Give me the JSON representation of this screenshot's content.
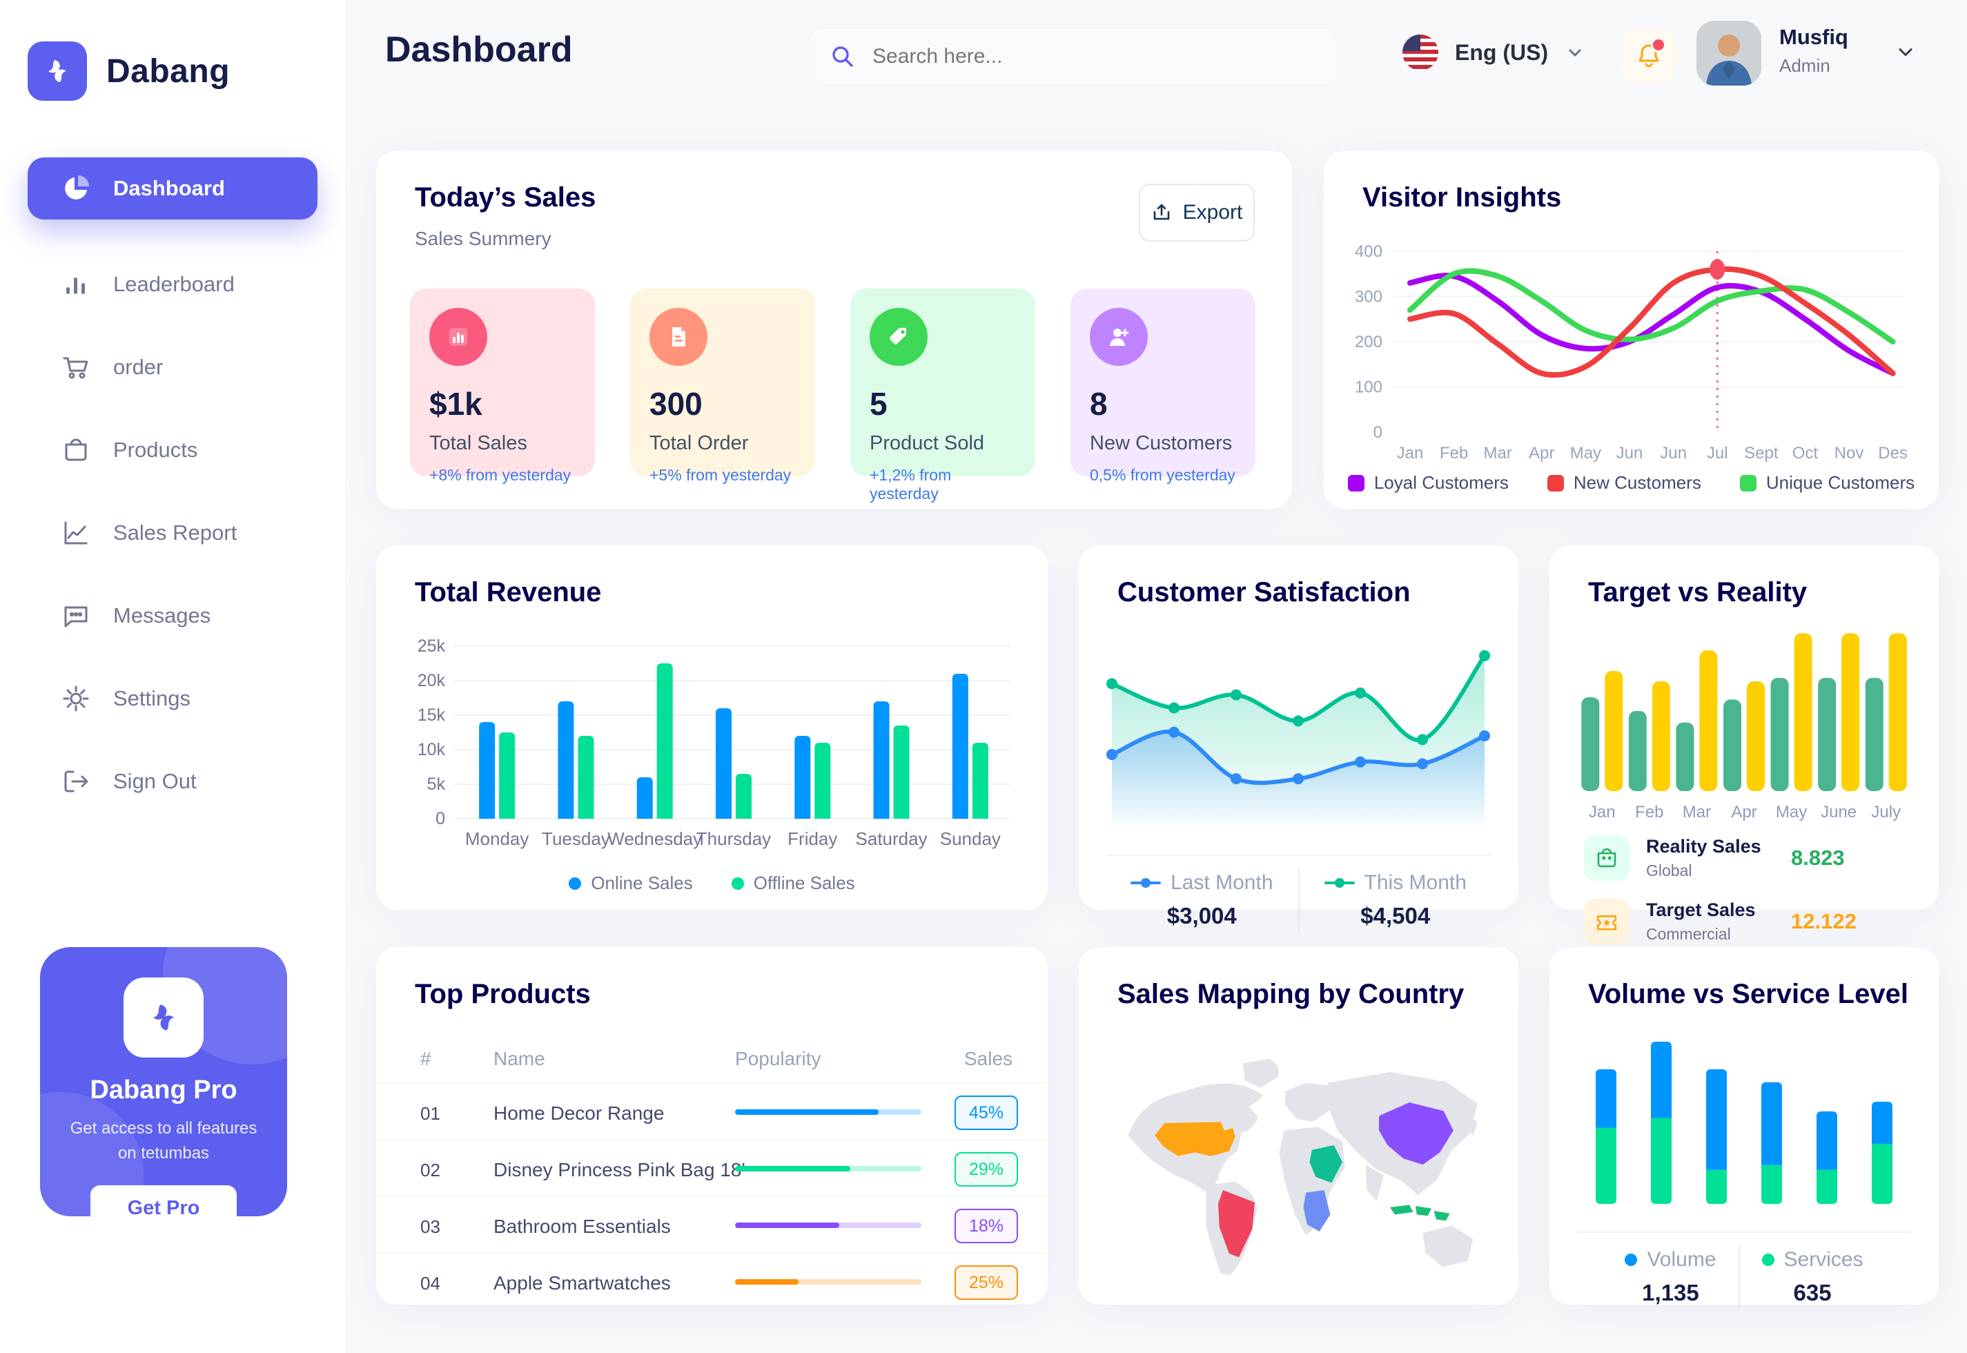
{
  "app": {
    "name": "Dabang"
  },
  "header": {
    "title": "Dashboard",
    "search": {
      "placeholder": "Search here...",
      "icon": "search-icon"
    },
    "language": {
      "label": "Eng (US)",
      "flag": "us-flag-icon"
    },
    "notifications": {
      "icon": "bell-icon",
      "unread_dot_color": "#F64E60"
    },
    "user": {
      "name": "Musfiq",
      "role": "Admin"
    }
  },
  "sidebar": {
    "items": [
      {
        "label": "Dashboard",
        "icon": "pie-chart-icon",
        "active": true
      },
      {
        "label": "Leaderboard",
        "icon": "bar-chart-icon",
        "active": false
      },
      {
        "label": "order",
        "icon": "cart-icon",
        "active": false
      },
      {
        "label": "Products",
        "icon": "bag-icon",
        "active": false
      },
      {
        "label": "Sales Report",
        "icon": "line-chart-icon",
        "active": false
      },
      {
        "label": "Messages",
        "icon": "message-icon",
        "active": false
      },
      {
        "label": "Settings",
        "icon": "gear-icon",
        "active": false
      },
      {
        "label": "Sign Out",
        "icon": "sign-out-icon",
        "active": false
      }
    ],
    "promo": {
      "title": "Dabang Pro",
      "description": "Get access to all features on tetumbas",
      "button": "Get Pro",
      "bg_color": "#5D5FEF"
    }
  },
  "today_sales": {
    "title": "Today’s Sales",
    "subtitle": "Sales Summery",
    "export_label": "Export",
    "delta_color": "#4079ED",
    "cards": [
      {
        "value": "$1k",
        "label": "Total Sales",
        "delta": "+8% from yesterday",
        "bg": "#FFE2E5",
        "icon_bg": "#FA5A7D",
        "icon": "bar-chart-icon"
      },
      {
        "value": "300",
        "label": "Total Order",
        "delta": "+5% from yesterday",
        "bg": "#FFF4DE",
        "icon_bg": "#FF947A",
        "icon": "order-receipt-icon"
      },
      {
        "value": "5",
        "label": "Product Sold",
        "delta": "+1,2% from yesterday",
        "bg": "#DCFCE7",
        "icon_bg": "#3CD856",
        "icon": "tag-icon"
      },
      {
        "value": "8",
        "label": "New Customers",
        "delta": "0,5% from yesterday",
        "bg": "#F3E8FF",
        "icon_bg": "#BF83FF",
        "icon": "user-plus-icon"
      }
    ]
  },
  "top_products": {
    "title": "Top Products",
    "columns": [
      "#",
      "Name",
      "Popularity",
      "Sales"
    ],
    "rows": [
      {
        "index": "01",
        "name": "Home Decor Range",
        "popularity": 77,
        "sales": "45%",
        "color": "#0095FF",
        "tint": "#F0F9FF"
      },
      {
        "index": "02",
        "name": "Disney Princess Pink Bag 18'",
        "popularity": 62,
        "sales": "29%",
        "color": "#00E096",
        "tint": "#F0FDF6"
      },
      {
        "index": "03",
        "name": "Bathroom Essentials",
        "popularity": 56,
        "sales": "18%",
        "color": "#884DFF",
        "tint": "#FBF5FF"
      },
      {
        "index": "04",
        "name": "Apple Smartwatches",
        "popularity": 34,
        "sales": "25%",
        "color": "#FF8F0D",
        "tint": "#FFF6EA"
      }
    ]
  },
  "chart_data": [
    {
      "id": "visitor-insights",
      "type": "line",
      "title": "Visitor Insights",
      "categories": [
        "Jan",
        "Feb",
        "Mar",
        "Apr",
        "May",
        "Jun",
        "Jun",
        "Jul",
        "Sept",
        "Oct",
        "Nov",
        "Des"
      ],
      "ylim": [
        0,
        400
      ],
      "yticks": [
        0,
        100,
        200,
        300,
        400
      ],
      "grid": true,
      "legend_position": "bottom",
      "series": [
        {
          "name": "Loyal Customers",
          "color": "#A700F6",
          "values": [
            330,
            345,
            290,
            215,
            185,
            200,
            260,
            320,
            310,
            250,
            180,
            130
          ]
        },
        {
          "name": "New Customers",
          "color": "#EF3E3E",
          "values": [
            250,
            262,
            195,
            130,
            145,
            230,
            330,
            360,
            345,
            285,
            215,
            130
          ]
        },
        {
          "name": "Unique Customers",
          "color": "#3CD856",
          "values": [
            270,
            350,
            345,
            290,
            225,
            205,
            230,
            290,
            312,
            315,
            265,
            200
          ]
        }
      ],
      "annotation": {
        "type": "vline",
        "category": "Jul",
        "index": 7,
        "color": "#F64E60",
        "marker_series": "New Customers",
        "marker_value": 360
      }
    },
    {
      "id": "total-revenue",
      "type": "bar",
      "title": "Total Revenue",
      "categories": [
        "Monday",
        "Tuesday",
        "Wednesday",
        "Thursday",
        "Friday",
        "Saturday",
        "Sunday"
      ],
      "ylabel": "",
      "unit": "k",
      "ylim": [
        0,
        25
      ],
      "yticks": [
        "0",
        "5k",
        "10k",
        "15k",
        "20k",
        "25k"
      ],
      "grid": true,
      "legend_position": "bottom",
      "series": [
        {
          "name": "Online Sales",
          "color": "#0095FF",
          "values": [
            14,
            17,
            6,
            16,
            12,
            17,
            21
          ]
        },
        {
          "name": "Offline Sales",
          "color": "#00E096",
          "values": [
            12.5,
            12,
            22.5,
            6.5,
            11,
            13.5,
            11
          ]
        }
      ]
    },
    {
      "id": "customer-satisfaction",
      "type": "area",
      "title": "Customer Satisfaction",
      "x_points": 7,
      "ylim": [
        0,
        100
      ],
      "legend_position": "bottom",
      "series": [
        {
          "name": "Last Month",
          "color": "#2E8AF7",
          "total": "$3,004",
          "values": [
            40,
            52,
            27,
            27,
            36,
            35,
            50
          ]
        },
        {
          "name": "This Month",
          "color": "#00C292",
          "total": "$4,504",
          "values": [
            78,
            65,
            72,
            58,
            73,
            48,
            93
          ]
        }
      ]
    },
    {
      "id": "target-vs-reality",
      "type": "bar",
      "title": "Target vs Reality",
      "categories": [
        "Jan",
        "Feb",
        "Mar",
        "Apr",
        "May",
        "June",
        "July"
      ],
      "ylim": [
        0,
        14
      ],
      "legend_position": "bottom-rows",
      "series": [
        {
          "name": "Reality Sales",
          "subtitle": "Global",
          "color": "#4AB58E",
          "icon_bg": "#E2FFF1",
          "value_label": "8.823",
          "value_color": "#27AE60",
          "values": [
            8.2,
            7,
            6,
            8,
            9.9,
            9.9,
            9.9
          ]
        },
        {
          "name": "Target Sales",
          "subtitle": "Commercial",
          "color": "#FFCF00",
          "icon_bg": "#FFF4DE",
          "value_label": "12.122",
          "value_color": "#FFA412",
          "values": [
            10.5,
            9.6,
            12.3,
            9.6,
            13.8,
            13.8,
            13.8
          ]
        }
      ]
    },
    {
      "id": "volume-service",
      "type": "stacked-bar",
      "title": "Volume vs Service Level",
      "x_points": 6,
      "ylim": [
        0,
        100
      ],
      "legend_position": "bottom",
      "series": [
        {
          "name": "Volume",
          "color": "#0095FF",
          "total": "1,135",
          "values": [
            36,
            47,
            62,
            51,
            36,
            26
          ]
        },
        {
          "name": "Services",
          "color": "#00E096",
          "total": "635",
          "values": [
            47,
            53,
            21,
            24,
            21,
            37
          ]
        }
      ]
    },
    {
      "id": "sales-mapping",
      "type": "map",
      "title": "Sales Mapping by Country",
      "land_color": "#E2E4EA",
      "countries": [
        {
          "id": "usa",
          "name": "United States",
          "color": "#FFA412"
        },
        {
          "id": "brazil",
          "name": "Brazil",
          "color": "#F0435D"
        },
        {
          "id": "saudi-arabia",
          "name": "Saudi Arabia",
          "color": "#0FBE93"
        },
        {
          "id": "dr-congo",
          "name": "DR Congo",
          "color": "#6E8EF5"
        },
        {
          "id": "china",
          "name": "China",
          "color": "#8A4FFF"
        },
        {
          "id": "indonesia",
          "name": "Indonesia",
          "color": "#1BBE77"
        }
      ]
    }
  ]
}
